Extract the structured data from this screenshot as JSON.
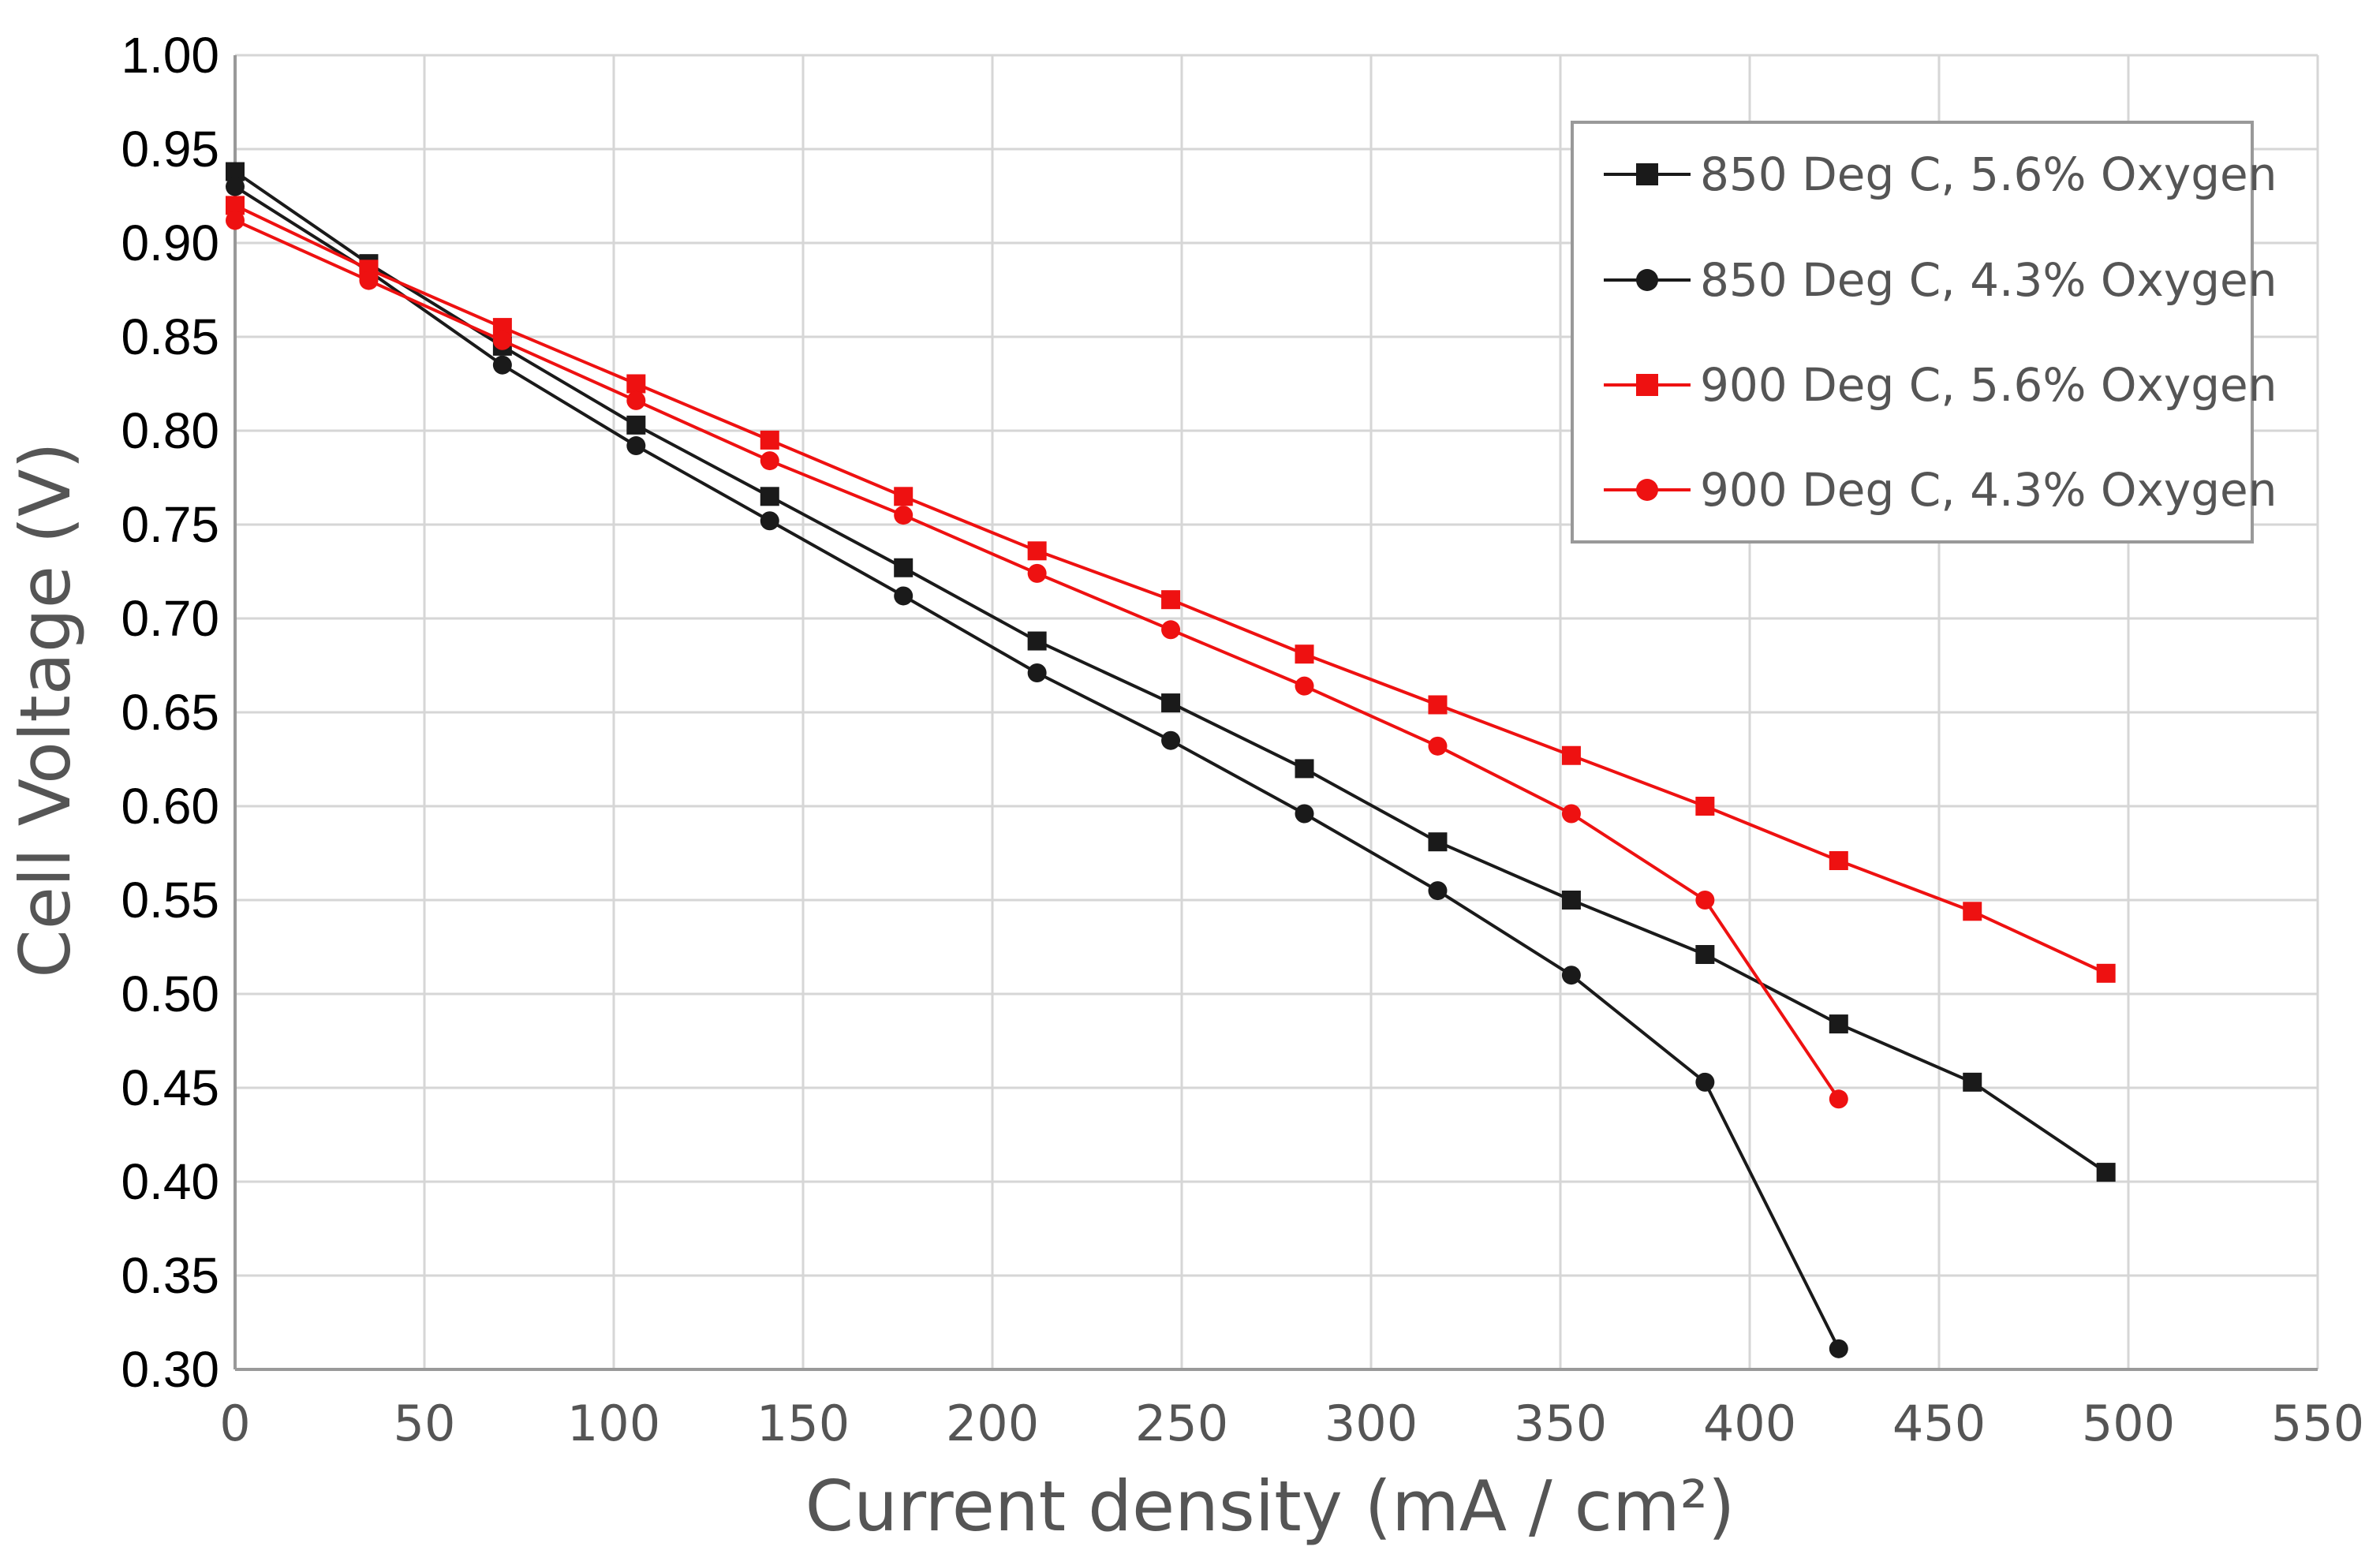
{
  "chart_data": {
    "type": "line",
    "title": "",
    "xlabel": "Current density (mA / cm²)",
    "ylabel": "Cell Voltage (V)",
    "xlim": [
      0,
      550
    ],
    "ylim": [
      0.3,
      1.0
    ],
    "x_ticks": [
      "0",
      "50",
      "100",
      "150",
      "200",
      "250",
      "300",
      "350",
      "400",
      "450",
      "500",
      "550"
    ],
    "y_ticks": [
      "0.30",
      "0.35",
      "0.40",
      "0.45",
      "0.50",
      "0.55",
      "0.60",
      "0.65",
      "0.70",
      "0.75",
      "0.80",
      "0.85",
      "0.90",
      "0.95",
      "1.00"
    ],
    "grid": true,
    "legend_position": "top-right",
    "series": [
      {
        "name": "850 Deg C, 5.6% Oxygen",
        "color": "#1a1a1a",
        "marker": "square",
        "x": [
          0,
          35.3,
          70.6,
          105.9,
          141.2,
          176.5,
          211.8,
          247.1,
          282.4,
          317.6,
          352.9,
          388.2,
          423.5,
          458.8,
          494.1
        ],
        "y": [
          0.938,
          0.889,
          0.845,
          0.803,
          0.765,
          0.727,
          0.688,
          0.655,
          0.62,
          0.581,
          0.55,
          0.521,
          0.484,
          0.453,
          0.405
        ]
      },
      {
        "name": "850 Deg C, 4.3% Oxygen",
        "color": "#1a1a1a",
        "marker": "circle",
        "x": [
          0,
          35.3,
          70.6,
          105.9,
          141.2,
          176.5,
          211.8,
          247.1,
          282.4,
          317.6,
          352.9,
          388.2,
          423.5
        ],
        "y": [
          0.93,
          0.885,
          0.835,
          0.792,
          0.752,
          0.712,
          0.671,
          0.635,
          0.596,
          0.555,
          0.51,
          0.453,
          0.311
        ]
      },
      {
        "name": "900 Deg C, 5.6% Oxygen",
        "color": "#ee1111",
        "marker": "square",
        "x": [
          0,
          35.3,
          70.6,
          105.9,
          141.2,
          176.5,
          211.8,
          247.1,
          282.4,
          317.6,
          352.9,
          388.2,
          423.5,
          458.8,
          494.1
        ],
        "y": [
          0.92,
          0.886,
          0.855,
          0.825,
          0.795,
          0.765,
          0.736,
          0.71,
          0.681,
          0.654,
          0.627,
          0.6,
          0.571,
          0.544,
          0.511
        ]
      },
      {
        "name": "900 Deg C, 4.3% Oxygen",
        "color": "#ee1111",
        "marker": "circle",
        "x": [
          0,
          35.3,
          70.6,
          105.9,
          141.2,
          176.5,
          211.8,
          247.1,
          282.4,
          317.6,
          352.9,
          388.2,
          423.5
        ],
        "y": [
          0.912,
          0.88,
          0.848,
          0.816,
          0.784,
          0.755,
          0.724,
          0.694,
          0.664,
          0.632,
          0.596,
          0.55,
          0.444
        ]
      }
    ]
  },
  "colors": {
    "grid": "#d6d6d6",
    "axis": "#999999",
    "legend_border": "#999999"
  }
}
